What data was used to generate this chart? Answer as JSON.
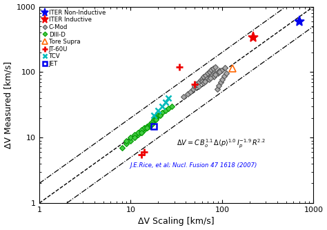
{
  "xlabel": "ΔV Scaling [km/s]",
  "ylabel": "ΔV Measured [km/s]",
  "xlim": [
    1,
    1000
  ],
  "ylim": [
    1,
    1000
  ],
  "citation": "J.E.Rice, et al; Nucl. Fusion 47 1618 (2007)",
  "datasets": {
    "ITER Non-Inductive": {
      "x": [
        700
      ],
      "y": [
        600
      ],
      "marker": "*",
      "color": "#0000EE",
      "ms": 11,
      "label": "ITER Non-Inductive",
      "zorder": 6,
      "mew": 1.2,
      "mfc": "#0000EE"
    },
    "ITER Inductive": {
      "x": [
        220
      ],
      "y": [
        340
      ],
      "marker": "*",
      "color": "#EE0000",
      "ms": 11,
      "label": "ITER Inductive",
      "zorder": 6,
      "mew": 1.2,
      "mfc": "#EE0000"
    },
    "C-Mod": {
      "x": [
        38,
        42,
        45,
        48,
        50,
        52,
        55,
        58,
        60,
        63,
        66,
        70,
        73,
        76,
        80,
        84,
        88,
        92,
        96,
        100,
        106,
        112,
        52,
        60,
        68,
        76,
        84,
        93,
        55,
        63,
        72,
        81,
        90,
        99,
        108,
        65,
        74,
        84,
        94
      ],
      "y": [
        42,
        46,
        50,
        55,
        60,
        65,
        70,
        75,
        80,
        85,
        90,
        95,
        100,
        108,
        115,
        120,
        55,
        62,
        70,
        78,
        88,
        95,
        65,
        72,
        80,
        88,
        96,
        105,
        60,
        68,
        77,
        86,
        96,
        106,
        116,
        72,
        82,
        92,
        102
      ],
      "marker": "D",
      "color": "#555555",
      "ms": 4.5,
      "label": "C-Mod",
      "zorder": 4,
      "mew": 0.8,
      "mfc": "#AAAAAA"
    },
    "DIII-D": {
      "x": [
        8,
        9,
        10,
        11,
        12,
        13,
        14,
        15,
        16,
        17,
        18,
        19,
        20,
        22,
        24,
        26,
        28,
        10,
        12,
        14,
        16,
        18,
        20,
        9,
        11,
        13,
        15,
        17,
        19,
        21,
        11,
        13,
        15,
        17,
        19,
        21
      ],
      "y": [
        7,
        8,
        9,
        10,
        11,
        12,
        13,
        14,
        15,
        16,
        18,
        20,
        22,
        24,
        26,
        28,
        30,
        10,
        12,
        14,
        16,
        19,
        22,
        9,
        11,
        13,
        15,
        17,
        20,
        22,
        10,
        12,
        14,
        16,
        19,
        22
      ],
      "marker": "D",
      "color": "#009900",
      "ms": 4.5,
      "label": "DIII-D",
      "zorder": 4,
      "mew": 0.8,
      "mfc": "#44CC44"
    },
    "Tore Supra": {
      "x": [
        130
      ],
      "y": [
        115
      ],
      "marker": "^",
      "color": "#FF6600",
      "ms": 7,
      "label": "Tore Supra",
      "zorder": 5,
      "mew": 1.2,
      "mfc": "none"
    },
    "JT-60U": {
      "x": [
        34,
        50,
        13,
        14
      ],
      "y": [
        120,
        65,
        5.5,
        6
      ],
      "marker": "+",
      "color": "#EE0000",
      "ms": 7,
      "label": "JT-60U",
      "zorder": 5,
      "mew": 2.0,
      "mfc": "#EE0000"
    },
    "TCV": {
      "x": [
        18,
        20,
        22,
        24,
        26
      ],
      "y": [
        22,
        26,
        30,
        35,
        40
      ],
      "marker": "x",
      "color": "#00BBBB",
      "ms": 6,
      "label": "TCV",
      "zorder": 5,
      "mew": 1.8,
      "mfc": "#00BBBB"
    },
    "JET": {
      "x": [
        18
      ],
      "y": [
        15
      ],
      "marker": "s",
      "color": "#0000EE",
      "ms": 6,
      "label": "JET",
      "zorder": 5,
      "mew": 1.8,
      "mfc": "none"
    }
  },
  "fit_line": {
    "x": [
      1,
      1000
    ],
    "y": [
      1,
      1000
    ]
  },
  "factor2_upper": {
    "x": [
      1,
      1000
    ],
    "y": [
      2,
      2000
    ]
  },
  "factor2_lower": {
    "x": [
      2,
      1000
    ],
    "y": [
      1,
      500
    ]
  },
  "background_color": "#ffffff"
}
